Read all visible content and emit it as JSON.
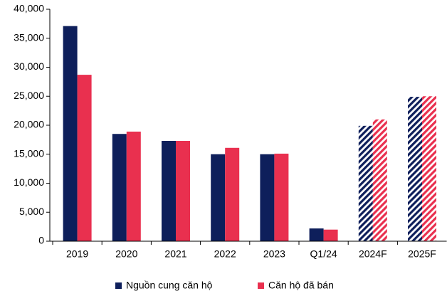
{
  "chart_data": {
    "type": "bar",
    "categories": [
      "2019",
      "2020",
      "2021",
      "2022",
      "2023",
      "Q1/24",
      "2024F",
      "2025F"
    ],
    "series": [
      {
        "name": "Nguồn cung căn hộ",
        "color": "#0e1f5b",
        "values": [
          37100,
          18500,
          17300,
          15000,
          15000,
          2200,
          19900,
          24900
        ]
      },
      {
        "name": "Căn hộ đã bán",
        "color": "#e9304f",
        "values": [
          28700,
          18900,
          17300,
          16100,
          15100,
          2000,
          21000,
          25000
        ]
      }
    ],
    "ylim": [
      0,
      40000
    ],
    "yticks": [
      0,
      {
        "value": 5000,
        "label": "5,000"
      },
      {
        "value": 10000,
        "label": "10,000"
      },
      {
        "value": 15000,
        "label": "15,000"
      },
      {
        "value": 20000,
        "label": "20,000"
      },
      {
        "value": 25000,
        "label": "25,000"
      },
      {
        "value": 30000,
        "label": "30,000"
      },
      {
        "value": 35000,
        "label": "35,000"
      },
      {
        "value": 40000,
        "label": "40,000"
      }
    ],
    "legend": "bottom"
  }
}
